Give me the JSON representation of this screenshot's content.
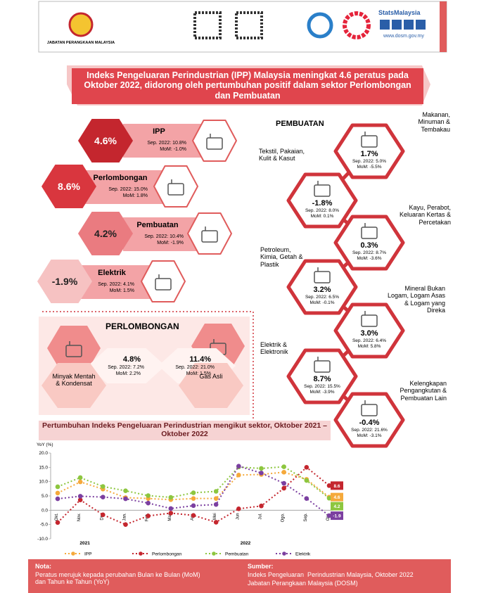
{
  "header": {
    "agency": "JABATAN PERANGKAAN MALAYSIA",
    "brand": "StatsMalaysia",
    "website": "www.dosm.gov.my"
  },
  "title": "Indeks Pengeluaran Perindustrian (IPP) Malaysia meningkat 4.6 peratus pada Oktober 2022, didorong oleh pertumbuhan positif dalam sektor Perlombongan dan Pembuatan",
  "summary": [
    {
      "value": "4.6%",
      "label": "IPP",
      "sep": "Sep. 2022: 10.8%",
      "mom": "MoM: -1.0%"
    },
    {
      "value": "8.6%",
      "label": "Perlombongan",
      "sep": "Sep. 2022: 15.0%",
      "mom": "MoM: 1.8%"
    },
    {
      "value": "4.2%",
      "label": "Pembuatan",
      "sep": "Sep. 2022: 10.4%",
      "mom": "MoM: -1.9%"
    },
    {
      "value": "-1.9%",
      "label": "Elektrik",
      "sep": "Sep. 2022: 4.1%",
      "mom": "MoM: 1.5%"
    }
  ],
  "mining": {
    "title": "PERLOMBONGAN",
    "items": [
      {
        "name": "Minyak Mentah & Kondensat",
        "value": "4.8%",
        "sep": "Sep. 2022: 7.2%",
        "mom": "MoM: 2.2%"
      },
      {
        "name": "Gas Asli",
        "value": "11.4%",
        "sep": "Sep. 2022: 21.0%",
        "mom": "MoM: 1.5%"
      }
    ]
  },
  "manufacturing": {
    "title": "PEMBUATAN",
    "items": [
      {
        "name": "Makanan, Minuman & Tembakau",
        "value": "1.7%",
        "sep": "Sep. 2022: 5.0%",
        "mom": "MoM: -5.5%"
      },
      {
        "name": "Tekstil, Pakaian, Kulit & Kasut",
        "value": "-1.8%",
        "sep": "Sep. 2022: 8.0%",
        "mom": "MoM: 0.1%"
      },
      {
        "name": "Kayu, Perabot, Keluaran Kertas & Percetakan",
        "value": "0.3%",
        "sep": "Sep. 2022: 8.7%",
        "mom": "MoM: -3.6%"
      },
      {
        "name": "Petroleum, Kimia, Getah & Plastik",
        "value": "3.2%",
        "sep": "Sep. 2022: 6.5%",
        "mom": "MoM: -0.1%"
      },
      {
        "name": "Mineral Bukan Logam, Logam Asas & Logam yang Direka",
        "value": "3.0%",
        "sep": "Sep. 2022: 6.4%",
        "mom": "MoM: 5.8%"
      },
      {
        "name": "Elektrik & Elektronik",
        "value": "8.7%",
        "sep": "Sep. 2022: 15.5%",
        "mom": "MoM: -3.9%"
      },
      {
        "name": "Kelengkapan Pengangkutan & Pembuatan Lain",
        "value": "-0.4%",
        "sep": "Sep. 2022: 21.6%",
        "mom": "MoM: -3.1%"
      }
    ]
  },
  "chart_data": {
    "type": "line",
    "title": "Pertumbuhan Indeks Pengeluaran Perindustrian mengikut sektor, Oktober 2021 – Oktober 2022",
    "y_label": "YoY (%)",
    "categories": [
      "Okt.",
      "Nov.",
      "Dis.",
      "Jan.",
      "Feb.",
      "Mac",
      "Apr.",
      "Mei",
      "Jun",
      "Jul.",
      "Ogo.",
      "Sep.",
      "Okt."
    ],
    "year_labels": [
      "2021",
      "2022"
    ],
    "ylim": [
      -10,
      20
    ],
    "yticks": [
      {
        "value": -10,
        "label": "-10.0"
      },
      {
        "value": -5,
        "label": "-5.0"
      },
      {
        "value": 0,
        "label": "0.0"
      },
      {
        "value": 5,
        "label": "5.0"
      },
      {
        "value": 10,
        "label": "10.0"
      },
      {
        "value": 15,
        "label": "15.0"
      },
      {
        "value": 20,
        "label": "20.0"
      }
    ],
    "grid": false,
    "series": [
      {
        "name": "IPP",
        "color": "#f5a93b",
        "values": [
          6.0,
          9.9,
          7.4,
          4.4,
          4.1,
          3.7,
          4.1,
          4.1,
          12.3,
          12.5,
          13.3,
          10.8,
          4.6
        ]
      },
      {
        "name": "Perlombongan",
        "color": "#c4262e",
        "values": [
          -4.3,
          3.6,
          -1.6,
          -5.0,
          -2.0,
          -1.0,
          -1.8,
          -4.2,
          0.5,
          1.5,
          7.7,
          15.0,
          8.6
        ]
      },
      {
        "name": "Pembuatan",
        "color": "#8dc63f",
        "values": [
          8.2,
          11.4,
          8.3,
          6.8,
          5.1,
          4.5,
          6.1,
          6.6,
          15.1,
          14.6,
          15.2,
          10.4,
          4.2
        ]
      },
      {
        "name": "Elektrik",
        "color": "#7b3fa0",
        "values": [
          4.0,
          4.9,
          4.6,
          4.0,
          2.5,
          0.6,
          1.6,
          2.0,
          15.4,
          13.0,
          9.4,
          4.1,
          -1.9
        ]
      }
    ]
  },
  "footer": {
    "note_title": "Nota:",
    "note": "Peratus merujuk kepada perubahan Bulan ke Bulan (MoM) dan Tahun ke Tahun (YoY)",
    "source_title": "Sumber:",
    "source_lines": [
      "Indeks Pengeluaran  Perindustrian Malaysia, Oktober 2022",
      "Jabatan Perangkaan Malaysia (DOSM)"
    ]
  }
}
